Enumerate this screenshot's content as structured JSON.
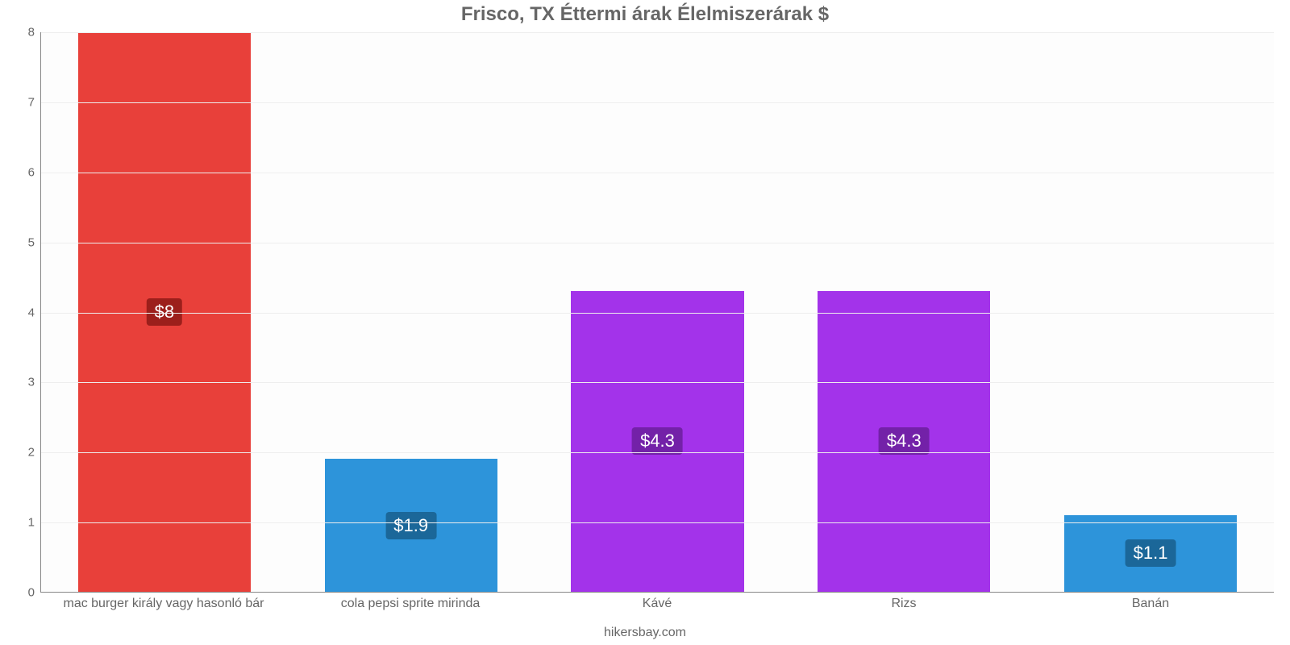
{
  "chart": {
    "type": "bar",
    "title": "Frisco, TX Éttermi árak Élelmiszerárak $",
    "title_fontsize": 24,
    "title_color": "#666666",
    "background_color": "#ffffff",
    "plot_background": "#fdfdfd",
    "grid_color": "#eeeeee",
    "axis_color": "#888888",
    "tick_label_color": "#666666",
    "tick_label_fontsize": 15,
    "xlabel_fontsize": 16,
    "ylim": [
      0,
      8
    ],
    "ytick_step": 1,
    "yticks": [
      0,
      1,
      2,
      3,
      4,
      5,
      6,
      7,
      8
    ],
    "bar_width": 0.7,
    "categories": [
      "mac burger király vagy hasonló bár",
      "cola pepsi sprite mirinda",
      "Kávé",
      "Rizs",
      "Banán"
    ],
    "values": [
      8,
      1.9,
      4.3,
      4.3,
      1.1
    ],
    "value_labels": [
      "$8",
      "$1.9",
      "$4.3",
      "$4.3",
      "$1.1"
    ],
    "bar_colors": [
      "#e8403a",
      "#2d94da",
      "#a333ea",
      "#a333ea",
      "#2d94da"
    ],
    "badge_colors": [
      "#9c1f1b",
      "#1b6799",
      "#7321a8",
      "#7321a8",
      "#1b6799"
    ],
    "badge_text_color": "#ffffff",
    "badge_fontsize": 22,
    "footer": "hikersbay.com",
    "footer_color": "#666666",
    "footer_fontsize": 16
  }
}
